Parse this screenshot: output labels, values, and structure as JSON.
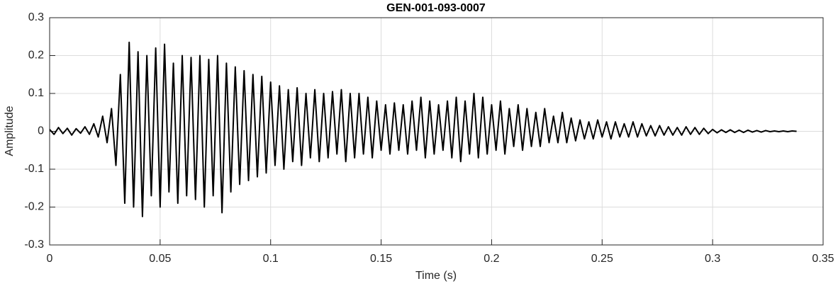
{
  "chart_data": {
    "type": "line",
    "title": "GEN-001-093-0007",
    "xlabel": "Time (s)",
    "ylabel": "Amplitude",
    "color": "#000000",
    "grid": true,
    "xlim": [
      0,
      0.35
    ],
    "xticks": [
      0,
      0.05,
      0.1,
      0.15,
      0.2,
      0.25,
      0.3,
      0.35
    ],
    "ylim": [
      -0.3,
      0.3
    ],
    "yticks": [
      -0.3,
      -0.2,
      -0.1,
      0,
      0.1,
      0.2,
      0.3
    ],
    "x": [
      0,
      0.002,
      0.004,
      0.006,
      0.008,
      0.01,
      0.012,
      0.014,
      0.016,
      0.018,
      0.02,
      0.022,
      0.024,
      0.026,
      0.028,
      0.03,
      0.032,
      0.034,
      0.036,
      0.038,
      0.04,
      0.042,
      0.044,
      0.046,
      0.048,
      0.05,
      0.052,
      0.054,
      0.056,
      0.058,
      0.06,
      0.062,
      0.064,
      0.066,
      0.068,
      0.07,
      0.072,
      0.074,
      0.076,
      0.078,
      0.08,
      0.082,
      0.084,
      0.086,
      0.088,
      0.09,
      0.092,
      0.094,
      0.096,
      0.098,
      0.1,
      0.102,
      0.104,
      0.106,
      0.108,
      0.11,
      0.112,
      0.114,
      0.116,
      0.118,
      0.12,
      0.122,
      0.124,
      0.126,
      0.128,
      0.13,
      0.132,
      0.134,
      0.136,
      0.138,
      0.14,
      0.142,
      0.144,
      0.146,
      0.148,
      0.15,
      0.152,
      0.154,
      0.156,
      0.158,
      0.16,
      0.162,
      0.164,
      0.166,
      0.168,
      0.17,
      0.172,
      0.174,
      0.176,
      0.178,
      0.18,
      0.182,
      0.184,
      0.186,
      0.188,
      0.19,
      0.192,
      0.194,
      0.196,
      0.198,
      0.2,
      0.202,
      0.204,
      0.206,
      0.208,
      0.21,
      0.212,
      0.214,
      0.216,
      0.218,
      0.22,
      0.222,
      0.224,
      0.226,
      0.228,
      0.23,
      0.232,
      0.234,
      0.236,
      0.238,
      0.24,
      0.242,
      0.244,
      0.246,
      0.248,
      0.25,
      0.252,
      0.254,
      0.256,
      0.258,
      0.26,
      0.262,
      0.264,
      0.266,
      0.268,
      0.27,
      0.272,
      0.274,
      0.276,
      0.278,
      0.28,
      0.282,
      0.284,
      0.286,
      0.288,
      0.29,
      0.292,
      0.294,
      0.296,
      0.298,
      0.3,
      0.302,
      0.304,
      0.306,
      0.308,
      0.31,
      0.312,
      0.314,
      0.316,
      0.318,
      0.32,
      0.322,
      0.324,
      0.326,
      0.328,
      0.33,
      0.332,
      0.334,
      0.336,
      0.338
    ],
    "values": [
      0.005,
      -0.008,
      0.01,
      -0.006,
      0.008,
      -0.01,
      0.007,
      -0.005,
      0.012,
      -0.008,
      0.02,
      -0.015,
      0.04,
      -0.03,
      0.06,
      -0.09,
      0.15,
      -0.19,
      0.235,
      -0.2,
      0.21,
      -0.225,
      0.2,
      -0.17,
      0.22,
      -0.2,
      0.23,
      -0.16,
      0.18,
      -0.19,
      0.2,
      -0.17,
      0.195,
      -0.18,
      0.2,
      -0.2,
      0.19,
      -0.17,
      0.2,
      -0.215,
      0.18,
      -0.16,
      0.17,
      -0.14,
      0.16,
      -0.13,
      0.15,
      -0.12,
      0.145,
      -0.11,
      0.13,
      -0.09,
      0.12,
      -0.1,
      0.11,
      -0.08,
      0.115,
      -0.09,
      0.1,
      -0.07,
      0.11,
      -0.08,
      0.1,
      -0.07,
      0.105,
      -0.06,
      0.11,
      -0.08,
      0.1,
      -0.07,
      0.1,
      -0.06,
      0.09,
      -0.07,
      0.08,
      -0.05,
      0.07,
      -0.06,
      0.075,
      -0.05,
      0.07,
      -0.06,
      0.08,
      -0.05,
      0.09,
      -0.07,
      0.08,
      -0.06,
      0.07,
      -0.05,
      0.08,
      -0.07,
      0.09,
      -0.08,
      0.08,
      -0.06,
      0.1,
      -0.07,
      0.09,
      -0.06,
      0.07,
      -0.05,
      0.08,
      -0.06,
      0.06,
      -0.04,
      0.07,
      -0.05,
      0.06,
      -0.04,
      0.05,
      -0.04,
      0.06,
      -0.03,
      0.04,
      -0.03,
      0.05,
      -0.03,
      0.035,
      -0.025,
      0.03,
      -0.02,
      0.025,
      -0.02,
      0.03,
      -0.015,
      0.025,
      -0.02,
      0.025,
      -0.015,
      0.02,
      -0.015,
      0.025,
      -0.015,
      0.02,
      -0.012,
      0.015,
      -0.012,
      0.015,
      -0.01,
      0.012,
      -0.01,
      0.01,
      -0.01,
      0.012,
      -0.008,
      0.01,
      -0.008,
      0.008,
      -0.006,
      0.005,
      -0.004,
      0.004,
      -0.003,
      0.004,
      -0.003,
      0.003,
      -0.003,
      0.003,
      -0.002,
      0.002,
      -0.002,
      0.002,
      -0.001,
      0.001,
      -0.001,
      0.001,
      -0.001,
      0.001,
      0
    ]
  }
}
